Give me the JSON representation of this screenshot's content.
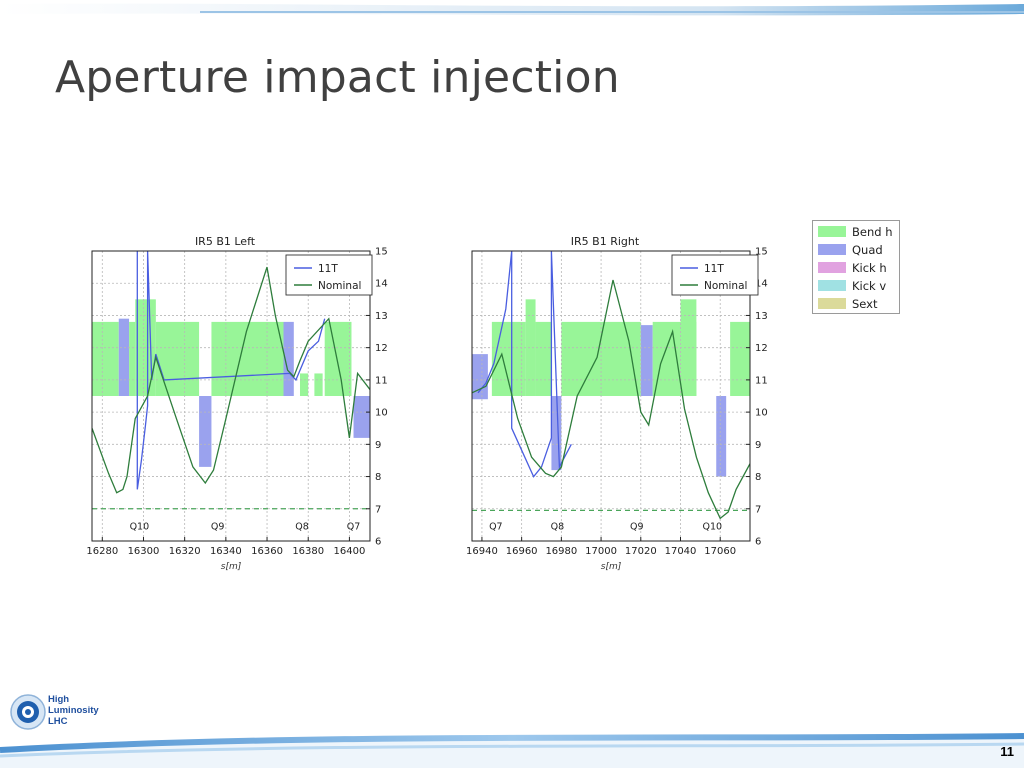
{
  "slide": {
    "title": "Aperture impact injection",
    "page_number": "11",
    "logo": {
      "line1": "High",
      "line2": "Luminosity",
      "line3": "LHC"
    }
  },
  "legend_elements": [
    {
      "label": "Bend h",
      "color": "#98f598"
    },
    {
      "label": "Quad",
      "color": "#9aa2ee"
    },
    {
      "label": "Kick h",
      "color": "#e1a2e0"
    },
    {
      "label": "Kick v",
      "color": "#a0e1e3"
    },
    {
      "label": "Sext",
      "color": "#dbda9a"
    }
  ],
  "colors": {
    "line_11t": "#4a5ee0",
    "line_nominal": "#2e7d3c",
    "reference": "#4aa55a"
  },
  "chart_data": [
    {
      "type": "line",
      "title": "IR5 B1 Left",
      "xlabel": "s[m]",
      "xlim": [
        16275,
        16410
      ],
      "ylim": [
        6,
        15
      ],
      "xticks": [
        16280,
        16300,
        16320,
        16340,
        16360,
        16380,
        16400
      ],
      "yticks": [
        6,
        7,
        8,
        9,
        10,
        11,
        12,
        13,
        14,
        15
      ],
      "grid": true,
      "reference_line_y": 7.0,
      "quad_labels": [
        {
          "label": "Q10",
          "x": 16298
        },
        {
          "label": "Q9",
          "x": 16336
        },
        {
          "label": "Q8",
          "x": 16377
        },
        {
          "label": "Q7",
          "x": 16402
        }
      ],
      "elements": [
        {
          "kind": "Bend h",
          "x": [
            16275,
            16288
          ],
          "y": [
            10.5,
            12.8
          ]
        },
        {
          "kind": "Quad",
          "x": [
            16288,
            16293
          ],
          "y": [
            10.5,
            12.9
          ]
        },
        {
          "kind": "Bend h",
          "x": [
            16293,
            16296
          ],
          "y": [
            10.5,
            12.8
          ]
        },
        {
          "kind": "Bend h",
          "x": [
            16296,
            16306
          ],
          "y": [
            10.5,
            13.5
          ]
        },
        {
          "kind": "Bend h",
          "x": [
            16306,
            16327
          ],
          "y": [
            10.5,
            12.8
          ]
        },
        {
          "kind": "Quad",
          "x": [
            16327,
            16333
          ],
          "y": [
            8.3,
            10.5
          ]
        },
        {
          "kind": "Bend h",
          "x": [
            16333,
            16368
          ],
          "y": [
            10.5,
            12.8
          ]
        },
        {
          "kind": "Quad",
          "x": [
            16368,
            16373
          ],
          "y": [
            10.5,
            12.8
          ]
        },
        {
          "kind": "Bend h",
          "x": [
            16376,
            16380
          ],
          "y": [
            10.5,
            11.2
          ]
        },
        {
          "kind": "Bend h",
          "x": [
            16383,
            16387
          ],
          "y": [
            10.5,
            11.2
          ]
        },
        {
          "kind": "Bend h",
          "x": [
            16388,
            16401
          ],
          "y": [
            10.5,
            12.8
          ]
        },
        {
          "kind": "Quad",
          "x": [
            16402,
            16410
          ],
          "y": [
            9.2,
            10.5
          ]
        }
      ],
      "series": [
        {
          "name": "11T",
          "x": [
            16297,
            16297,
            16299,
            16301,
            16302,
            16302,
            16304,
            16306,
            16310,
            16371,
            16374,
            16380,
            16385,
            16388
          ],
          "y": [
            15,
            7.6,
            8.5,
            9.6,
            10.2,
            15,
            11,
            11.8,
            11,
            11.2,
            11.0,
            11.9,
            12.2,
            12.9
          ]
        },
        {
          "name": "Nominal",
          "x": [
            16275,
            16283,
            16287,
            16290,
            16292,
            16296,
            16302,
            16306,
            16316,
            16324,
            16330,
            16334,
            16340,
            16350,
            16360,
            16364,
            16370,
            16373,
            16376,
            16380,
            16390,
            16396,
            16400,
            16404,
            16410
          ],
          "y": [
            9.5,
            8.1,
            7.5,
            7.6,
            8.0,
            9.8,
            10.5,
            11.7,
            9.8,
            8.3,
            7.8,
            8.2,
            9.8,
            12.5,
            14.5,
            13.0,
            11.3,
            11.1,
            11.6,
            12.2,
            12.9,
            11.0,
            9.2,
            11.2,
            10.7
          ]
        }
      ]
    },
    {
      "type": "line",
      "title": "IR5 B1 Right",
      "xlabel": "s[m]",
      "xlim": [
        16935,
        17075
      ],
      "ylim": [
        6,
        15
      ],
      "xticks": [
        16940,
        16960,
        16980,
        17000,
        17020,
        17040,
        17060
      ],
      "yticks": [
        6,
        7,
        8,
        9,
        10,
        11,
        12,
        13,
        14,
        15
      ],
      "grid": true,
      "reference_line_y": 6.95,
      "quad_labels": [
        {
          "label": "Q7",
          "x": 16947
        },
        {
          "label": "Q8",
          "x": 16978
        },
        {
          "label": "Q9",
          "x": 17018
        },
        {
          "label": "Q10",
          "x": 17056
        }
      ],
      "elements": [
        {
          "kind": "Quad",
          "x": [
            16935,
            16943
          ],
          "y": [
            10.4,
            11.8
          ]
        },
        {
          "kind": "Bend h",
          "x": [
            16945,
            16962
          ],
          "y": [
            10.5,
            12.8
          ]
        },
        {
          "kind": "Bend h",
          "x": [
            16962,
            16967
          ],
          "y": [
            10.5,
            13.5
          ]
        },
        {
          "kind": "Bend h",
          "x": [
            16967,
            16975
          ],
          "y": [
            10.5,
            12.8
          ]
        },
        {
          "kind": "Quad",
          "x": [
            16975,
            16980
          ],
          "y": [
            8.2,
            10.5
          ]
        },
        {
          "kind": "Bend h",
          "x": [
            16980,
            17020
          ],
          "y": [
            10.5,
            12.8
          ]
        },
        {
          "kind": "Quad",
          "x": [
            17020,
            17026
          ],
          "y": [
            10.5,
            12.7
          ]
        },
        {
          "kind": "Bend h",
          "x": [
            17026,
            17048
          ],
          "y": [
            10.5,
            12.8
          ]
        },
        {
          "kind": "Bend h",
          "x": [
            17040,
            17048
          ],
          "y": [
            10.5,
            13.5
          ]
        },
        {
          "kind": "Quad",
          "x": [
            17058,
            17063
          ],
          "y": [
            8.0,
            10.5
          ]
        },
        {
          "kind": "Bend h",
          "x": [
            17065,
            17075
          ],
          "y": [
            10.5,
            12.8
          ]
        }
      ],
      "series": [
        {
          "name": "11T",
          "x": [
            16938,
            16942,
            16946,
            16952,
            16955,
            16955,
            16966,
            16970,
            16975,
            16975,
            16979,
            16985
          ],
          "y": [
            10.6,
            10.9,
            11.5,
            13.2,
            15,
            9.5,
            8.0,
            8.3,
            9.2,
            15,
            8.3,
            9.0
          ]
        },
        {
          "name": "Nominal",
          "x": [
            16935,
            16942,
            16950,
            16958,
            16965,
            16972,
            16976,
            16980,
            16988,
            16998,
            17006,
            17014,
            17020,
            17024,
            17030,
            17036,
            17042,
            17048,
            17054,
            17060,
            17064,
            17068,
            17075
          ],
          "y": [
            10.6,
            10.8,
            11.8,
            9.8,
            8.6,
            8.1,
            8.0,
            8.3,
            10.5,
            11.7,
            14.1,
            12.2,
            10.0,
            9.6,
            11.5,
            12.5,
            10.1,
            8.6,
            7.5,
            6.7,
            6.9,
            7.6,
            8.4
          ]
        }
      ]
    }
  ]
}
